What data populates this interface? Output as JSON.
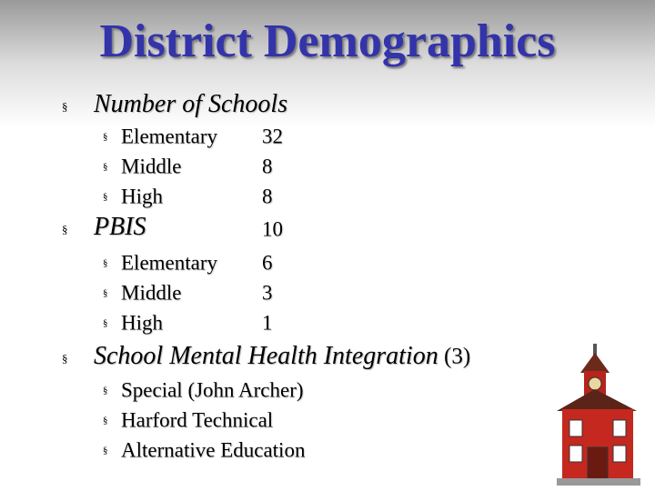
{
  "header": {
    "title": "District Demographics"
  },
  "sections": [
    {
      "label": "Number of Schools",
      "items": [
        {
          "label": "Elementary",
          "value": 32
        },
        {
          "label": "Middle",
          "value": 8
        },
        {
          "label": "High",
          "value": 8
        }
      ]
    },
    {
      "label": "PBIS",
      "value": 10,
      "items": [
        {
          "label": "Elementary",
          "value": 6
        },
        {
          "label": "Middle",
          "value": 3
        },
        {
          "label": "High",
          "value": 1
        }
      ]
    },
    {
      "label": "School Mental Health Integration",
      "value_label": "(3)",
      "items": [
        {
          "label": "Special (John Archer)"
        },
        {
          "label": "Harford Technical"
        },
        {
          "label": "Alternative Education"
        }
      ]
    }
  ]
}
